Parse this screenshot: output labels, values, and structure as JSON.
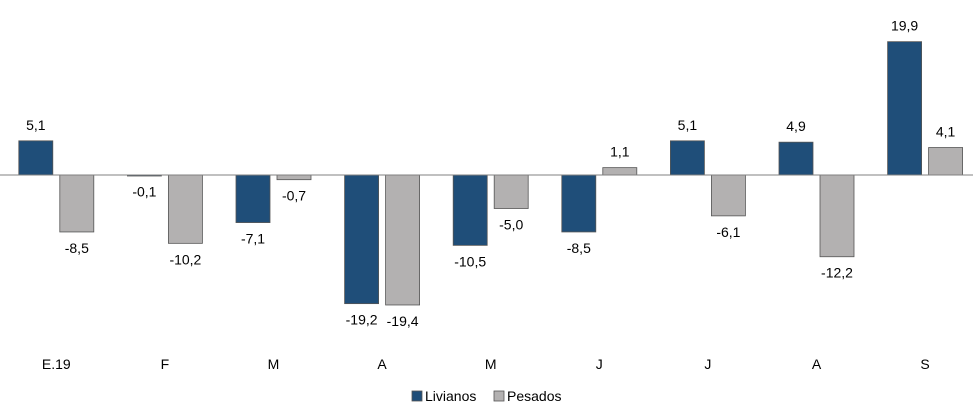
{
  "chart_data": {
    "type": "bar",
    "categories": [
      "E.19",
      "F",
      "M",
      "A",
      "M",
      "J",
      "J",
      "A",
      "S"
    ],
    "series": [
      {
        "name": "Livianos",
        "color": "#1f4e79",
        "values": [
          5.1,
          -0.1,
          -7.1,
          -19.2,
          -10.5,
          -8.5,
          5.1,
          4.9,
          19.9
        ],
        "labels": [
          "5,1",
          "-0,1",
          "-7,1",
          "-19,2",
          "-10,5",
          "-8,5",
          "5,1",
          "4,9",
          "19,9"
        ]
      },
      {
        "name": "Pesados",
        "color": "#b3b1b1",
        "values": [
          -8.5,
          -10.2,
          -0.7,
          -19.4,
          -5.0,
          1.1,
          -6.1,
          -12.2,
          4.1
        ],
        "labels": [
          "-8,5",
          "-10,2",
          "-0,7",
          "-19,4",
          "-5,0",
          "1,1",
          "-6,1",
          "-12,2",
          "4,1"
        ]
      }
    ],
    "ylim": [
      -19.4,
      19.9
    ],
    "grid": false,
    "legend": "bottom-center"
  }
}
